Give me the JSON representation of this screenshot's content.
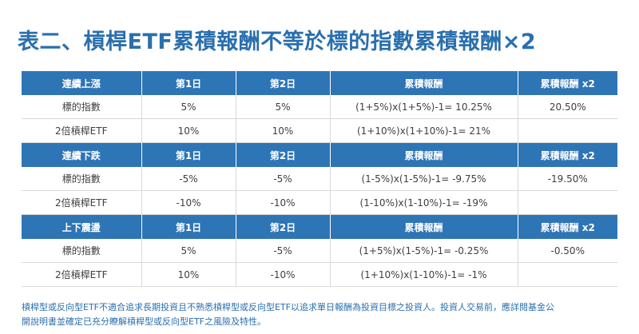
{
  "title": "表二、槓桿ETF累積報酬不等於標的指數累積報酬×2",
  "tables": [
    {
      "headers": [
        "連續上漲",
        "第1日",
        "第2日",
        "累積報酬",
        "累積報酬 x2"
      ],
      "rows": [
        [
          "標的指數",
          "5%",
          "5%",
          "(1+5%)x(1+5%)-1= 10.25%",
          "20.50%"
        ],
        [
          "2倍槓桿ETF",
          "10%",
          "10%",
          "(1+10%)x(1+10%)-1= 21%",
          ""
        ]
      ]
    },
    {
      "headers": [
        "連續下跌",
        "第1日",
        "第2日",
        "累積報酬",
        "累積報酬 x2"
      ],
      "rows": [
        [
          "標的指數",
          "-5%",
          "-5%",
          "(1-5%)x(1-5%)-1= -9.75%",
          "-19.50%"
        ],
        [
          "2倍槓桿ETF",
          "-10%",
          "-10%",
          "(1-10%)x(1-10%)-1= -19%",
          ""
        ]
      ]
    },
    {
      "headers": [
        "上下震盪",
        "第1日",
        "第2日",
        "累積報酬",
        "累積報酬 x2"
      ],
      "rows": [
        [
          "標的指數",
          "5%",
          "-5%",
          "(1+5%)x(1-5%)-1= -0.25%",
          "-0.50%"
        ],
        [
          "2倍槓桿ETF",
          "10%",
          "-10%",
          "(1+10%)x(1-10%)-1= -1%",
          ""
        ]
      ]
    }
  ],
  "footnote": {
    "line1": "槓桿型或反向型ETF不適合追求長期投資且不熟悉槓桿型或反向型ETF以追求單日報酬為投資目標之投資人。投資人交易前，應詳閱基金公",
    "line2": "開說明書並確定已充分瞭解槓桿型或反向型ETF之風險及特性。"
  },
  "colors": {
    "header_bg": "#2e75b6",
    "title": "#2a6fae",
    "footnote": "#2a6fae"
  }
}
